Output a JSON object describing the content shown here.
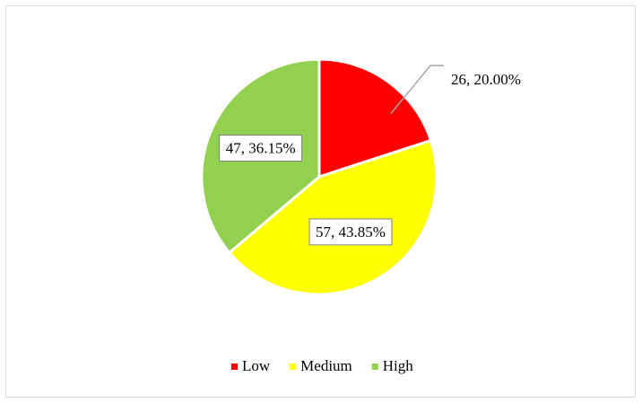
{
  "chart_data": {
    "type": "pie",
    "categories": [
      "Low",
      "Medium",
      "High"
    ],
    "values": [
      26,
      57,
      47
    ],
    "value_labels": [
      "26, 20.00%",
      "57, 43.85%",
      "47, 36.15%"
    ],
    "colors": [
      "#ff0000",
      "#ffff00",
      "#92d050"
    ],
    "legend": "bottom"
  }
}
